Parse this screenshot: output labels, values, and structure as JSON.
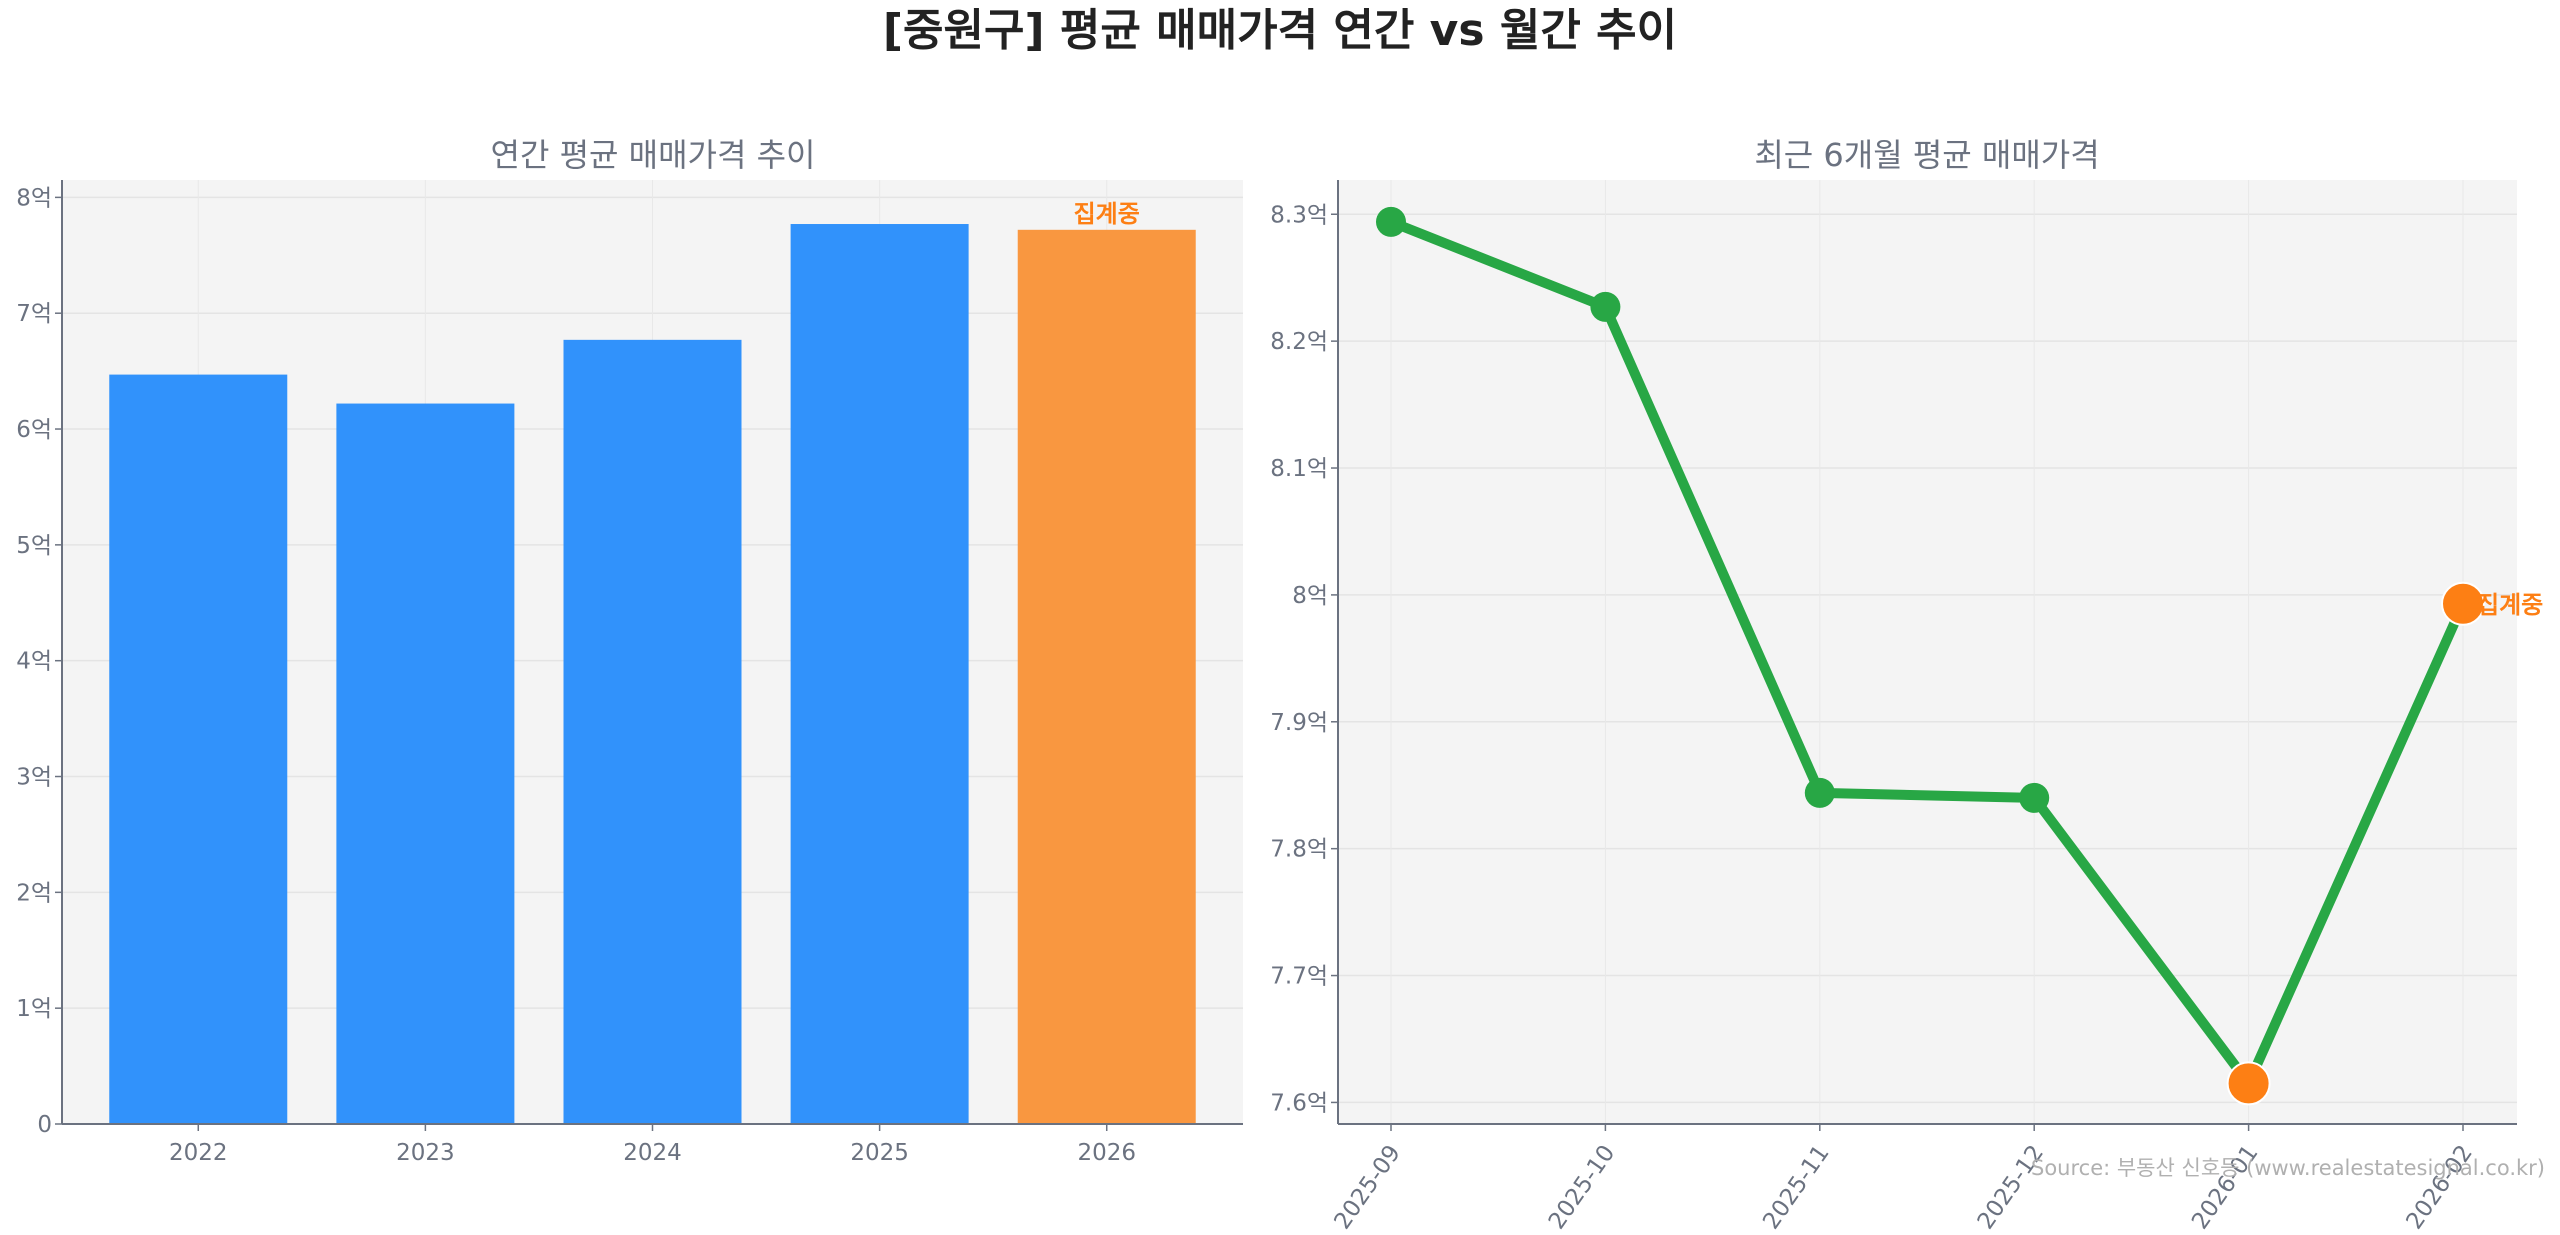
{
  "title": "[중원구] 평균 매매가격 연간 vs 월간 추이",
  "source": "Source: 부동산 신호등 (www.realestatesignal.co.kr)",
  "colors": {
    "bar": "#3192fb",
    "bar_partial": "#f99740",
    "line": "#28a745",
    "partial_point": "#fd7f14",
    "annotation": "#fd7f14",
    "plot_bg": "#f4f4f4"
  },
  "chart_data": [
    {
      "type": "bar",
      "title": "연간 평균 매매가격 추이",
      "categories": [
        "2022",
        "2023",
        "2024",
        "2025",
        "2026"
      ],
      "values": [
        6.47,
        6.22,
        6.77,
        7.77,
        7.72
      ],
      "unit": "억",
      "ylim": [
        0,
        8.15
      ],
      "yticks": [
        0,
        1,
        2,
        3,
        4,
        5,
        6,
        7,
        8
      ],
      "ytick_labels": [
        "0",
        "1억",
        "2억",
        "3억",
        "4억",
        "5억",
        "6억",
        "7억",
        "8억"
      ],
      "partial_index": 4,
      "annotation": "집계중",
      "grid": true
    },
    {
      "type": "line",
      "title": "최근 6개월 평균 매매가격",
      "x": [
        "2025-09",
        "2025-10",
        "2025-11",
        "2025-12",
        "2026-01",
        "2026-02"
      ],
      "values": [
        8.294,
        8.227,
        7.844,
        7.84,
        7.615,
        7.993
      ],
      "unit": "억",
      "ylim": [
        7.583,
        8.327
      ],
      "yticks": [
        7.6,
        7.7,
        7.8,
        7.9,
        8.0,
        8.1,
        8.2,
        8.3
      ],
      "ytick_labels": [
        "7.6억",
        "7.7억",
        "7.8억",
        "7.9억",
        "8억",
        "8.1억",
        "8.2억",
        "8.3억"
      ],
      "highlight_indices": [
        4,
        5
      ],
      "annotation": "집계중",
      "grid": true
    }
  ]
}
